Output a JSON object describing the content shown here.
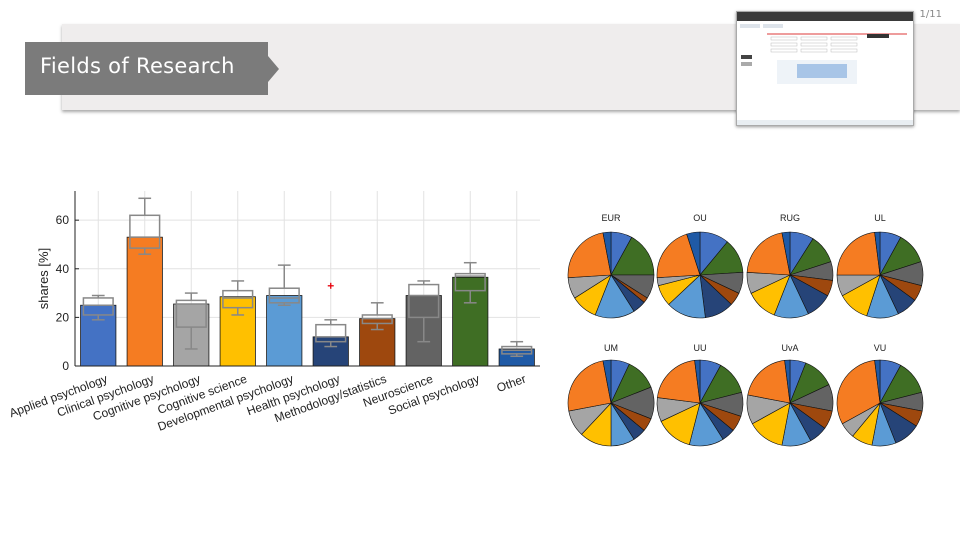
{
  "slide": {
    "title": "Fields of Research",
    "page_number": "1/11"
  },
  "colors": {
    "header_tab": "#7b7b7b",
    "header_band": "#efeded",
    "Applied psychology": "#4472c4",
    "Clinical psychology": "#f57c22",
    "Cognitive psychology": "#a5a5a5",
    "Cognitive science": "#ffc000",
    "Developmental psychology": "#5b9bd5",
    "Health psychology": "#264478",
    "Methodology/statistics": "#9e480e",
    "Neuroscience": "#636363",
    "Social psychology": "#3f6e24",
    "Other": "#1f5aa6",
    "box": "#888888",
    "outlier": "#e8000b"
  },
  "chart_data": [
    {
      "type": "bar",
      "title": "",
      "xlabel": "",
      "ylabel": "shares [%]",
      "ylim": [
        0,
        72
      ],
      "yticks": [
        0,
        20,
        40,
        60
      ],
      "grid": true,
      "categories": [
        "Applied psychology",
        "Clinical psychology",
        "Cognitive psychology",
        "Cognitive science",
        "Developmental psychology",
        "Health psychology",
        "Methodology/statistics",
        "Neuroscience",
        "Social psychology",
        "Other"
      ],
      "values": [
        25,
        53,
        25.5,
        28.5,
        29,
        12,
        19.5,
        29,
        36.5,
        7
      ],
      "boxplot": [
        {
          "min": 19,
          "q1": 21,
          "median": 25,
          "q3": 28,
          "max": 29
        },
        {
          "min": 46,
          "q1": 48.5,
          "median": 53,
          "q3": 62,
          "max": 69
        },
        {
          "min": 7,
          "q1": 16,
          "median": 25.5,
          "q3": 27,
          "max": 30
        },
        {
          "min": 21,
          "q1": 24,
          "median": 28,
          "q3": 31,
          "max": 35
        },
        {
          "min": 25,
          "q1": 26,
          "median": 28,
          "q3": 32,
          "max": 41.5
        },
        {
          "min": 8,
          "q1": 10,
          "median": 12,
          "q3": 17,
          "max": 19
        },
        {
          "min": 15,
          "q1": 17.5,
          "median": 19.5,
          "q3": 21,
          "max": 26
        },
        {
          "min": 10,
          "q1": 20,
          "median": 29,
          "q3": 33.5,
          "max": 35
        },
        {
          "min": 26,
          "q1": 31,
          "median": 37,
          "q3": 38,
          "max": 42.5
        },
        {
          "min": 4,
          "q1": 5,
          "median": 6.5,
          "q3": 8,
          "max": 10
        }
      ],
      "outliers": [
        {
          "category": "Health psychology",
          "value": 33
        }
      ]
    },
    {
      "type": "pie",
      "title": "",
      "slice_order": [
        "Applied psychology",
        "Social psychology",
        "Neuroscience",
        "Methodology/statistics",
        "Health psychology",
        "Developmental psychology",
        "Cognitive science",
        "Cognitive psychology",
        "Clinical psychology",
        "Other"
      ],
      "pies": [
        {
          "label": "EUR",
          "values": [
            8,
            17,
            9,
            2,
            5,
            15,
            10,
            8,
            23,
            3
          ]
        },
        {
          "label": "OU",
          "values": [
            11,
            13,
            8,
            5,
            11,
            15,
            8,
            3,
            21,
            5
          ]
        },
        {
          "label": "RUG",
          "values": [
            9,
            11,
            7,
            6,
            10,
            13,
            12,
            8,
            21,
            3
          ]
        },
        {
          "label": "UL",
          "values": [
            8,
            12,
            9,
            6,
            8,
            12,
            12,
            8,
            23,
            2
          ]
        },
        {
          "label": "UM",
          "values": [
            7,
            12,
            12,
            5,
            5,
            9,
            12,
            10,
            25,
            3
          ]
        },
        {
          "label": "UU",
          "values": [
            8,
            13,
            9,
            6,
            5,
            13,
            14,
            9,
            21,
            2
          ]
        },
        {
          "label": "UvA",
          "values": [
            6,
            12,
            10,
            7,
            7,
            11,
            14,
            11,
            20,
            2
          ]
        },
        {
          "label": "VU",
          "values": [
            8,
            13,
            7,
            6,
            10,
            9,
            8,
            6,
            31,
            2
          ]
        }
      ]
    }
  ]
}
